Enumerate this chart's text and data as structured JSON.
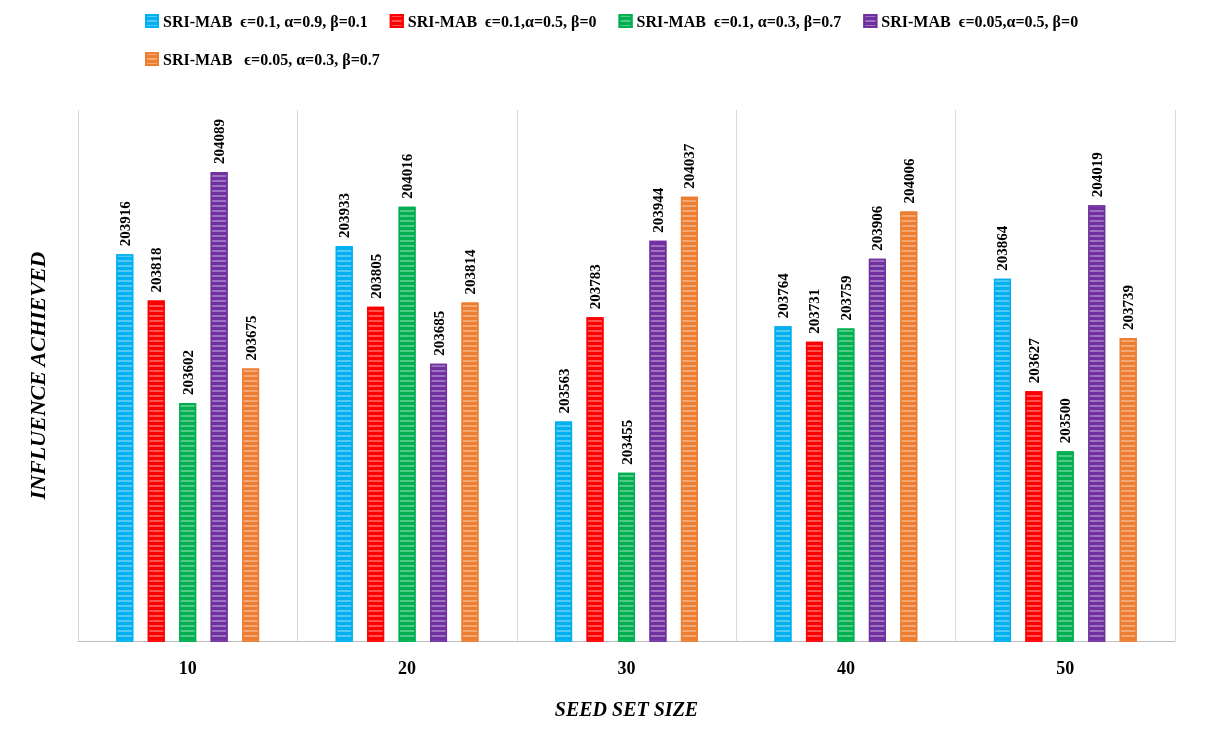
{
  "chart_data": {
    "type": "bar",
    "xlabel": "SEED SET SIZE",
    "ylabel": "INFLUENCE ACHIEVED",
    "categories": [
      "10",
      "20",
      "30",
      "40",
      "50"
    ],
    "series": [
      {
        "name": "SRI-MAB  ϵ=0.1, α=0.9, β=0.1",
        "color": "#00b0f0",
        "values": [
          203916,
          203933,
          203563,
          203764,
          203864
        ]
      },
      {
        "name": "SRI-MAB  ϵ=0.1,α=0.5, β=0",
        "color": "#ff0000",
        "values": [
          203818,
          203805,
          203783,
          203731,
          203627
        ]
      },
      {
        "name": "SRI-MAB  ϵ=0.1, α=0.3, β=0.7",
        "color": "#00b050",
        "values": [
          203602,
          204016,
          203455,
          203759,
          203500
        ]
      },
      {
        "name": "SRI-MAB  ϵ=0.05,α=0.5, β=0",
        "color": "#7030a0",
        "values": [
          204089,
          203685,
          203944,
          203906,
          204019
        ]
      },
      {
        "name": "SRI-MAB   ϵ=0.05, α=0.3, β=0.7",
        "color": "#ed7d31",
        "values": [
          203675,
          203814,
          204037,
          204006,
          203739
        ]
      }
    ],
    "ylim": [
      203100,
      204220
    ],
    "tick_labels": "x",
    "data_labels": true,
    "grid": "x",
    "legend": "top"
  }
}
